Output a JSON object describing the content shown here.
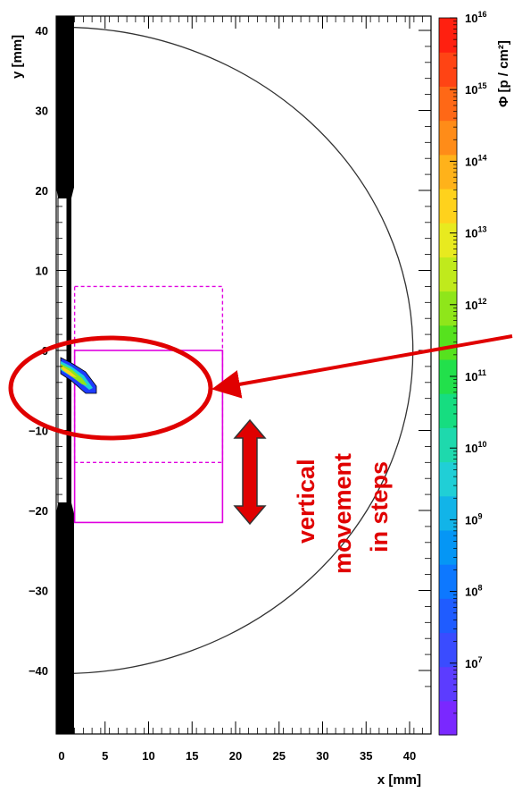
{
  "chart_data": {
    "type": "heatmap",
    "xlabel": "x [mm]",
    "ylabel": "y [mm]",
    "colorbar_label": "Φ [p / cm²]",
    "colorbar_scale": "log",
    "colorbar_range": [
      1000000.0,
      1e+16
    ],
    "xlim": [
      -0.5,
      43
    ],
    "ylim": [
      -42,
      42
    ],
    "x_ticks": [
      0,
      5,
      10,
      15,
      20,
      25,
      30,
      35,
      40
    ],
    "y_ticks": [
      -40,
      -30,
      -20,
      -10,
      0,
      10,
      20,
      30,
      40
    ],
    "y_tick_labels": [
      "−40",
      "−30",
      "−20",
      "−10",
      "0",
      "10",
      "20",
      "30",
      "40"
    ],
    "colorbar_ticks": [
      {
        "exp": 7,
        "label": "10",
        "sup": "7"
      },
      {
        "exp": 8,
        "label": "10",
        "sup": "8"
      },
      {
        "exp": 9,
        "label": "10",
        "sup": "9"
      },
      {
        "exp": 10,
        "label": "10",
        "sup": "10"
      },
      {
        "exp": 11,
        "label": "10",
        "sup": "11"
      },
      {
        "exp": 12,
        "label": "10",
        "sup": "12"
      },
      {
        "exp": 13,
        "label": "10",
        "sup": "13"
      },
      {
        "exp": 14,
        "label": "10",
        "sup": "14"
      },
      {
        "exp": 15,
        "label": "10",
        "sup": "15"
      },
      {
        "exp": 16,
        "label": "10",
        "sup": "16"
      }
    ],
    "colorbar_colors": [
      "#7a28ff",
      "#5c3cff",
      "#3a4cff",
      "#1f5cff",
      "#0d78ff",
      "#0596f5",
      "#12b4e8",
      "#20cfd6",
      "#1ed9ad",
      "#16dd80",
      "#22e04b",
      "#56e21e",
      "#8fe61a",
      "#c0ea1c",
      "#e8ea1f",
      "#ffd21c",
      "#ffb21a",
      "#ff8c18",
      "#ff6816",
      "#ff4414",
      "#ff2010"
    ],
    "semicircle": {
      "center": [
        0,
        0
      ],
      "radius": 40.4
    },
    "elements": {
      "collimator_upper": {
        "y_from": 19.5,
        "y_to": 42
      },
      "collimator_lower": {
        "y_from": -42,
        "y_to": -19.5
      },
      "sample_rect_solid": {
        "x": [
          1.5,
          18.5
        ],
        "y": [
          -21.5,
          0
        ]
      },
      "sample_rect_dashed": {
        "x": [
          1.5,
          18.5
        ],
        "y": [
          -14,
          8
        ]
      }
    }
  },
  "annotation": {
    "lines": [
      "vertical",
      "movement",
      "in steps"
    ],
    "color": "#e00000"
  }
}
